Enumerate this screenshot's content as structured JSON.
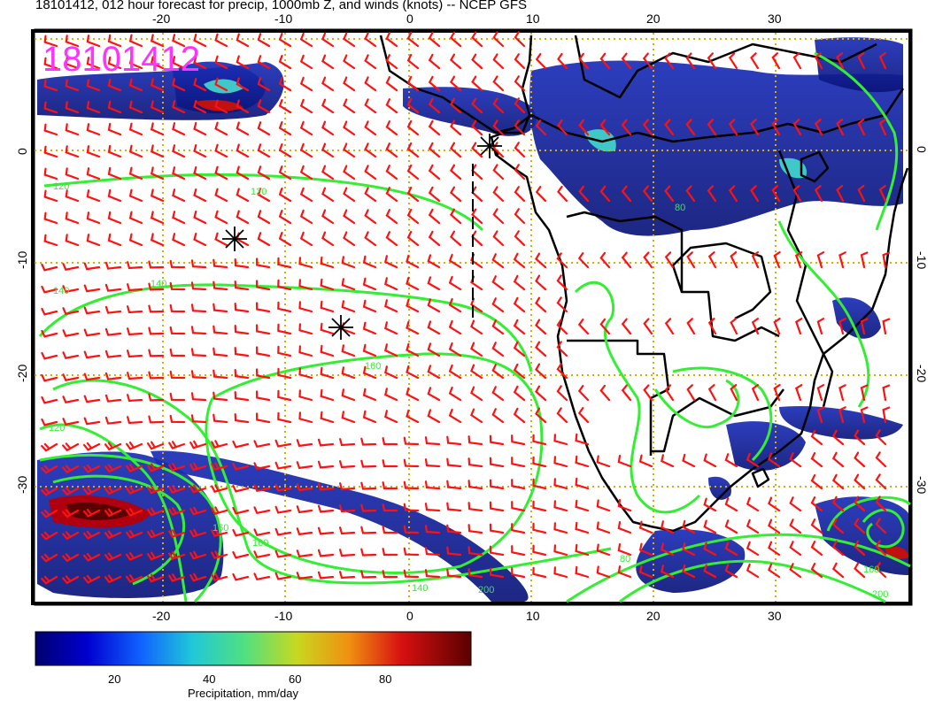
{
  "title": "18101412, 012 hour forecast for precip, 1000mb Z, and winds (knots) -- NCEP GFS",
  "stamp": "18101412",
  "lon_ticks": [
    "-20",
    "-10",
    "0",
    "10",
    "20",
    "30"
  ],
  "lat_ticks": [
    "0",
    "-10",
    "-20",
    "-30"
  ],
  "colorbar": {
    "ticks": [
      "20",
      "40",
      "60",
      "80"
    ],
    "label": "Precipitation, mm/day",
    "range": [
      0,
      100
    ]
  },
  "contours": {
    "labels": [
      "120",
      "120",
      "140",
      "140",
      "160",
      "160",
      "160",
      "120",
      "140",
      "200",
      "80",
      "80",
      "200",
      "160"
    ]
  },
  "colors": {
    "stamp": "#ff33ff",
    "contour": "#33ee33",
    "barb": "#ff1111",
    "grid": "#ddaa00",
    "coast": "#000000"
  }
}
